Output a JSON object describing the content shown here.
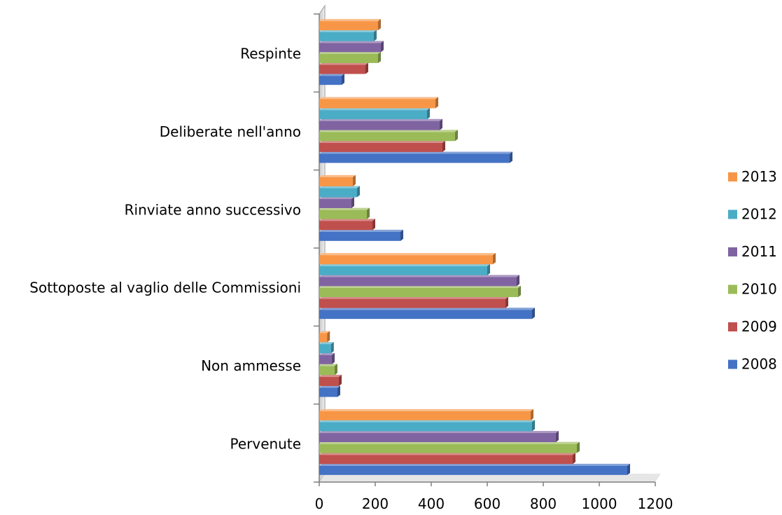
{
  "chart_data": {
    "type": "bar",
    "orientation": "horizontal",
    "title": "",
    "xlabel": "",
    "ylabel": "",
    "xlim": [
      0,
      1200
    ],
    "x_ticks": [
      0,
      200,
      400,
      600,
      800,
      1000,
      1200
    ],
    "x_tick_labels": [
      "0",
      "200",
      "400",
      "600",
      "800",
      "1000",
      "1200"
    ],
    "grid": false,
    "legend_position": "right",
    "categories": [
      "Pervenute",
      "Non ammesse",
      "Sottoposte al vaglio delle Commissioni",
      "Rinviate anno successivo",
      "Deliberate nell'anno",
      "Respinte"
    ],
    "series": [
      {
        "name": "2008",
        "color": "#4472c4",
        "values": [
          1100,
          65,
          760,
          290,
          680,
          80
        ]
      },
      {
        "name": "2009",
        "color": "#c0504d",
        "values": [
          905,
          70,
          665,
          190,
          440,
          165
        ]
      },
      {
        "name": "2010",
        "color": "#9bbb59",
        "values": [
          920,
          55,
          710,
          170,
          485,
          210
        ]
      },
      {
        "name": "2011",
        "color": "#8064a2",
        "values": [
          845,
          45,
          705,
          115,
          430,
          220
        ]
      },
      {
        "name": "2012",
        "color": "#4bacc6",
        "values": [
          760,
          42,
          600,
          135,
          385,
          195
        ]
      },
      {
        "name": "2013",
        "color": "#f79646",
        "values": [
          755,
          28,
          620,
          120,
          415,
          210
        ]
      }
    ]
  }
}
